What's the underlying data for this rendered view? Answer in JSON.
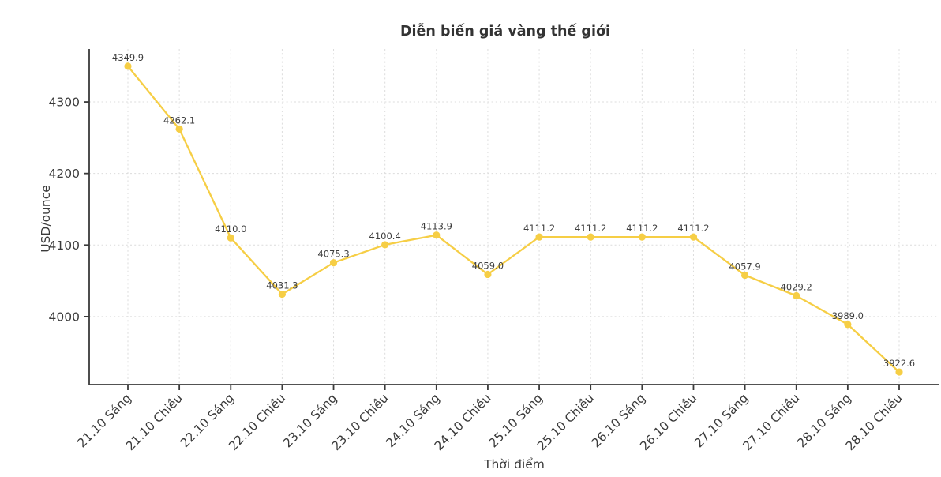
{
  "chart_data": {
    "type": "line",
    "title": "Diễn biến giá vàng thế giới",
    "xlabel": "Thời điểm",
    "ylabel": "USD/ounce",
    "categories": [
      "21.10 Sáng",
      "21.10 Chiều",
      "22.10 Sáng",
      "22.10 Chiều",
      "23.10 Sáng",
      "23.10 Chiều",
      "24.10 Sáng",
      "24.10 Chiều",
      "25.10 Sáng",
      "25.10 Chiều",
      "26.10 Sáng",
      "26.10 Chiều",
      "27.10 Sáng",
      "27.10 Chiều",
      "28.10 Sáng",
      "28.10 Chiều"
    ],
    "values": [
      4349.9,
      4262.1,
      4110.0,
      4031.3,
      4075.3,
      4100.4,
      4113.9,
      4059.0,
      4111.2,
      4111.2,
      4111.2,
      4111.2,
      4057.9,
      4029.2,
      3989.0,
      3922.6
    ],
    "point_labels": [
      "4349.9",
      "4262.1",
      "4110.0",
      "4031.3",
      "4075.3",
      "4100.4",
      "4113.9",
      "4059.0",
      "4111.2",
      "4111.2",
      "4111.2",
      "4111.2",
      "4057.9",
      "4029.2",
      "3989.0",
      "3922.6"
    ],
    "yticks": [
      4000,
      4100,
      4200,
      4300
    ],
    "ylim": [
      3905,
      4374
    ],
    "grid": true,
    "legend": "none",
    "colors": {
      "line": "#f6ce45",
      "marker": "#f6ce45",
      "grid": "#dcdcdc",
      "axis": "#3a3a3a",
      "tick_text": "#3a3a3a",
      "point_label_text": "#3e3e3e",
      "title_text": "#333333",
      "background": "#ffffff"
    }
  }
}
